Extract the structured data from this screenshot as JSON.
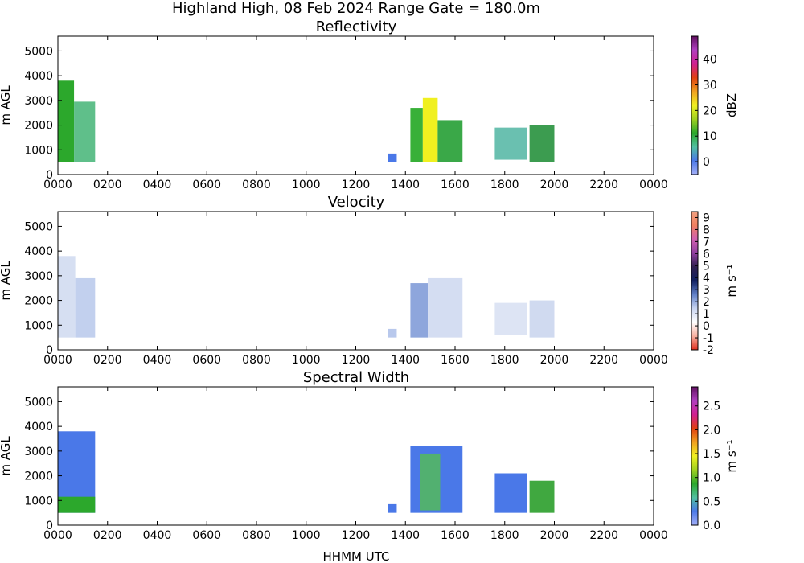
{
  "figure": {
    "suptitle": "Highland High, 08 Feb 2024 Range Gate = 180.0m",
    "xlabel": "HHMM UTC"
  },
  "chart_data": [
    {
      "type": "heatmap",
      "title": "Reflectivity",
      "ylabel": "m AGL",
      "x_ticks": [
        "0000",
        "0200",
        "0400",
        "0600",
        "0800",
        "1000",
        "1200",
        "1400",
        "1600",
        "1800",
        "2000",
        "2200",
        "0000"
      ],
      "y_ticks": [
        0,
        1000,
        2000,
        3000,
        4000,
        5000
      ],
      "ylim": [
        0,
        5600
      ],
      "xlim_hours": [
        0,
        24
      ],
      "colorbar": {
        "label": "dBZ",
        "range": [
          -5,
          49
        ],
        "ticks": [
          0,
          10,
          20,
          30,
          40
        ],
        "tick_labels": [
          "0",
          "10",
          "20",
          "30",
          "40"
        ]
      },
      "echoes": [
        {
          "start": 0.0,
          "end": 0.65,
          "top": 3800,
          "base": 500,
          "color": "#2ca82c"
        },
        {
          "start": 0.65,
          "end": 1.5,
          "top": 2950,
          "base": 500,
          "color": "#5fbf8a"
        },
        {
          "start": 13.3,
          "end": 13.65,
          "top": 850,
          "base": 500,
          "color": "#4a78e8"
        },
        {
          "start": 14.2,
          "end": 14.7,
          "top": 2700,
          "base": 500,
          "color": "#38b038"
        },
        {
          "start": 14.7,
          "end": 15.3,
          "top": 3100,
          "base": 500,
          "color": "#f0f020"
        },
        {
          "start": 15.3,
          "end": 16.3,
          "top": 2200,
          "base": 500,
          "color": "#3aa848"
        },
        {
          "start": 17.6,
          "end": 18.9,
          "top": 1900,
          "base": 600,
          "color": "#6ac0b0"
        },
        {
          "start": 19.0,
          "end": 20.0,
          "top": 2000,
          "base": 500,
          "color": "#3c9c50"
        }
      ]
    },
    {
      "type": "heatmap",
      "title": "Velocity",
      "ylabel": "m AGL",
      "x_ticks": [
        "0000",
        "0200",
        "0400",
        "0600",
        "0800",
        "1000",
        "1200",
        "1400",
        "1600",
        "1800",
        "2000",
        "2200",
        "0000"
      ],
      "y_ticks": [
        0,
        1000,
        2000,
        3000,
        4000,
        5000
      ],
      "ylim": [
        0,
        5600
      ],
      "xlim_hours": [
        0,
        24
      ],
      "colorbar": {
        "label": "m s⁻¹",
        "range": [
          -2,
          9.5
        ],
        "ticks": [
          -2,
          -1,
          0,
          1,
          2,
          3,
          4,
          5,
          6,
          7,
          8,
          9
        ],
        "tick_labels": [
          "-2",
          "-1",
          "0",
          "1",
          "2",
          "3",
          "4",
          "5",
          "6",
          "7",
          "8",
          "9"
        ]
      },
      "echoes": [
        {
          "start": 0.0,
          "end": 0.7,
          "top": 3800,
          "base": 500,
          "color": "#d6dff2"
        },
        {
          "start": 0.7,
          "end": 1.5,
          "top": 2900,
          "base": 500,
          "color": "#c2d0ee"
        },
        {
          "start": 13.3,
          "end": 13.65,
          "top": 850,
          "base": 500,
          "color": "#b8c8ec"
        },
        {
          "start": 14.2,
          "end": 14.9,
          "top": 2700,
          "base": 500,
          "color": "#8ea6dc"
        },
        {
          "start": 14.9,
          "end": 16.3,
          "top": 2900,
          "base": 500,
          "color": "#d4ddf2"
        },
        {
          "start": 17.6,
          "end": 18.9,
          "top": 1900,
          "base": 600,
          "color": "#dde4f4"
        },
        {
          "start": 19.0,
          "end": 20.0,
          "top": 2000,
          "base": 500,
          "color": "#d0daf0"
        }
      ]
    },
    {
      "type": "heatmap",
      "title": "Spectral Width",
      "ylabel": "m AGL",
      "x_ticks": [
        "0000",
        "0200",
        "0400",
        "0600",
        "0800",
        "1000",
        "1200",
        "1400",
        "1600",
        "1800",
        "2000",
        "2200",
        "0000"
      ],
      "y_ticks": [
        0,
        1000,
        2000,
        3000,
        4000,
        5000
      ],
      "ylim": [
        0,
        5600
      ],
      "xlim_hours": [
        0,
        24
      ],
      "colorbar": {
        "label": "m s⁻¹",
        "range": [
          0,
          2.9
        ],
        "ticks": [
          0,
          0.5,
          1.0,
          1.5,
          2.0,
          2.5
        ],
        "tick_labels": [
          "0.0",
          "0.5",
          "1.0",
          "1.5",
          "2.0",
          "2.5"
        ]
      },
      "echoes": [
        {
          "start": 0.0,
          "end": 1.5,
          "top": 3800,
          "base": 500,
          "color": "#4a78e8"
        },
        {
          "start": 0.0,
          "end": 1.5,
          "top": 1150,
          "base": 500,
          "color": "#2ca82c"
        },
        {
          "start": 13.3,
          "end": 13.65,
          "top": 850,
          "base": 500,
          "color": "#4a78e8"
        },
        {
          "start": 14.2,
          "end": 16.3,
          "top": 3200,
          "base": 500,
          "color": "#4a78e8"
        },
        {
          "start": 14.6,
          "end": 15.4,
          "top": 2900,
          "base": 600,
          "color": "#52b070"
        },
        {
          "start": 17.6,
          "end": 18.9,
          "top": 2100,
          "base": 500,
          "color": "#4a78e8"
        },
        {
          "start": 19.0,
          "end": 20.0,
          "top": 1800,
          "base": 500,
          "color": "#40a840"
        }
      ]
    }
  ]
}
